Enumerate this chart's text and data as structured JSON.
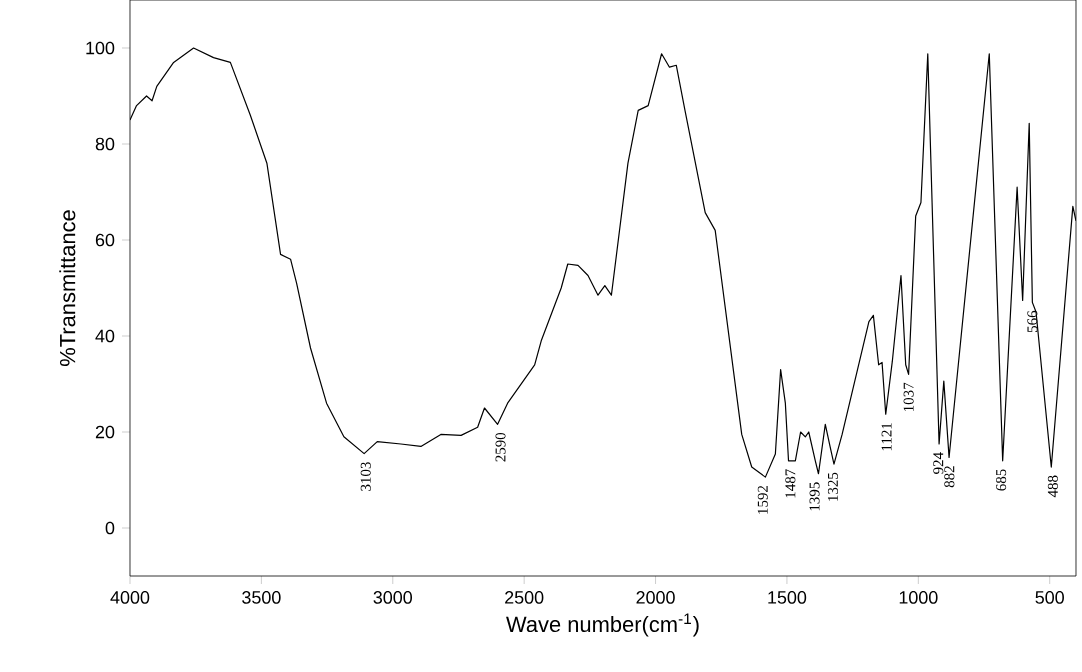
{
  "chart_data": {
    "type": "line",
    "xlabel": "Wave number(cm$^{-1}$)",
    "ylabel": "%Transmittance",
    "xlim": [
      4000,
      400
    ],
    "ylim": [
      -10,
      110
    ],
    "xticks": [
      4000,
      3500,
      3000,
      2500,
      2000,
      1500,
      1000,
      500
    ],
    "yticks": [
      0,
      20,
      40,
      60,
      80,
      100
    ],
    "marker": "none",
    "line_style": "solid",
    "series": [
      {
        "color": "#000000",
        "x": [
          4000,
          3975,
          3937,
          3916,
          3898,
          3834,
          3758,
          3682,
          3618,
          3542,
          3479,
          3427,
          3389,
          3366,
          3313,
          3252,
          3186,
          3109,
          3059,
          2969,
          2893,
          2817,
          2740,
          2677,
          2651,
          2601,
          2563,
          2460,
          2435,
          2359,
          2334,
          2295,
          2257,
          2219,
          2193,
          2168,
          2105,
          2066,
          2028,
          1977,
          1947,
          1921,
          1888,
          1811,
          1773,
          1672,
          1634,
          1582,
          1544,
          1524,
          1506,
          1494,
          1468,
          1448,
          1430,
          1417,
          1392,
          1380,
          1354,
          1336,
          1321,
          1290,
          1188,
          1171,
          1151,
          1138,
          1124,
          1099,
          1066,
          1048,
          1037,
          1010,
          990,
          964,
          921,
          903,
          883,
          730,
          679,
          624,
          603,
          578,
          566,
          552,
          494,
          412,
          400
        ],
        "values": [
          85,
          88,
          90,
          89,
          92,
          97,
          100,
          98,
          97,
          86,
          76,
          57,
          56,
          51,
          37.5,
          26,
          19,
          15.5,
          18,
          17.5,
          17,
          19.5,
          19.3,
          21,
          25,
          21.6,
          26,
          34,
          39,
          50,
          55,
          54.7,
          52.6,
          48.5,
          50.5,
          48.5,
          76,
          87,
          88,
          98.8,
          96,
          96.4,
          87,
          65.7,
          62,
          19.5,
          12.7,
          10.6,
          15.4,
          33,
          26,
          14,
          14,
          20,
          19,
          20,
          14,
          11.3,
          21.6,
          17,
          13.3,
          19.5,
          43,
          44.3,
          34,
          34.5,
          23.7,
          34.7,
          52.6,
          34,
          32,
          65,
          67.8,
          98.8,
          17.5,
          30.6,
          14.7,
          98.8,
          14,
          71,
          47.4,
          84.3,
          47,
          45,
          12.7,
          67,
          64
        ]
      }
    ],
    "annotations": [
      {
        "text": "3103",
        "x": 3103,
        "y": 15.5
      },
      {
        "text": "2590",
        "x": 2590,
        "y": 21.6
      },
      {
        "text": "1592",
        "x": 1592,
        "y": 10.6
      },
      {
        "text": "1487",
        "x": 1487,
        "y": 14
      },
      {
        "text": "1395",
        "x": 1395,
        "y": 11.3
      },
      {
        "text": "1325",
        "x": 1325,
        "y": 13.3
      },
      {
        "text": "1121",
        "x": 1121,
        "y": 23.7
      },
      {
        "text": "1037",
        "x": 1037,
        "y": 32
      },
      {
        "text": "924",
        "x": 924,
        "y": 17.5
      },
      {
        "text": "882",
        "x": 882,
        "y": 14.7
      },
      {
        "text": "685",
        "x": 685,
        "y": 14
      },
      {
        "text": "566",
        "x": 566,
        "y": 47
      },
      {
        "text": "488",
        "x": 488,
        "y": 12.7
      }
    ]
  }
}
